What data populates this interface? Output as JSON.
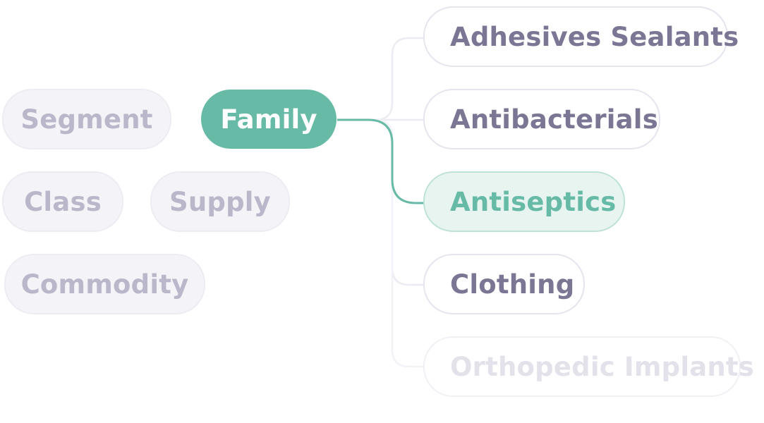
{
  "left_nodes": {
    "segment": "Segment",
    "class": "Class",
    "supply": "Supply",
    "commodity": "Commodity"
  },
  "active_node": {
    "label": "Family"
  },
  "children": [
    {
      "label": "Adhesives Sealants",
      "state": "normal"
    },
    {
      "label": "Antibacterials",
      "state": "normal"
    },
    {
      "label": "Antiseptics",
      "state": "selected"
    },
    {
      "label": "Clothing",
      "state": "normal"
    },
    {
      "label": "Orthopedic Implants",
      "state": "faded"
    }
  ],
  "colors": {
    "accent": "#67bba6",
    "accent_light": "#e8f4f0",
    "muted_text": "#b9b7c9",
    "child_text": "#7a7694",
    "faded_text": "#e3e2ea"
  }
}
